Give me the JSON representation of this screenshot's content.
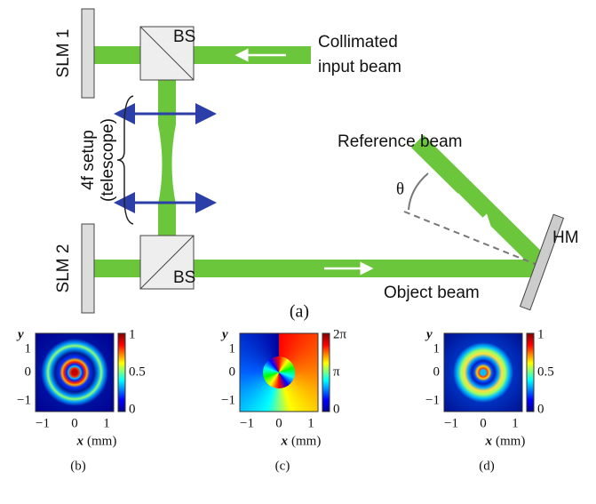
{
  "diagram": {
    "slm1": "SLM 1",
    "slm2": "SLM 2",
    "bs_top": "BS",
    "bs_bottom": "BS",
    "input_beam": [
      "Collimated",
      "input beam"
    ],
    "telescope": [
      "4f setup",
      "(telescope)"
    ],
    "reference_beam": "Reference beam",
    "angle": "θ",
    "mirror": "HM",
    "object_beam": "Object beam",
    "label": "(a)"
  },
  "panels": [
    {
      "label": "(b)",
      "y_label": "y",
      "x_label": "x",
      "x_unit": "(mm)",
      "xticks": [
        "−1",
        "0",
        "1"
      ],
      "yticks": [
        "1",
        "0",
        "−1"
      ],
      "colorbar_ticks": [
        "1",
        "0.5",
        "0"
      ]
    },
    {
      "label": "(c)",
      "y_label": "y",
      "x_label": "x",
      "x_unit": "(mm)",
      "xticks": [
        "−1",
        "0",
        "1"
      ],
      "yticks": [
        "1",
        "0",
        "−1"
      ],
      "colorbar_ticks": [
        "2π",
        "π",
        "0"
      ]
    },
    {
      "label": "(d)",
      "y_label": "y",
      "x_label": "x",
      "x_unit": "(mm)",
      "xticks": [
        "−1",
        "0",
        "1"
      ],
      "yticks": [
        "1",
        "0",
        "−1"
      ],
      "colorbar_ticks": [
        "1",
        "0.5",
        "0"
      ]
    }
  ]
}
